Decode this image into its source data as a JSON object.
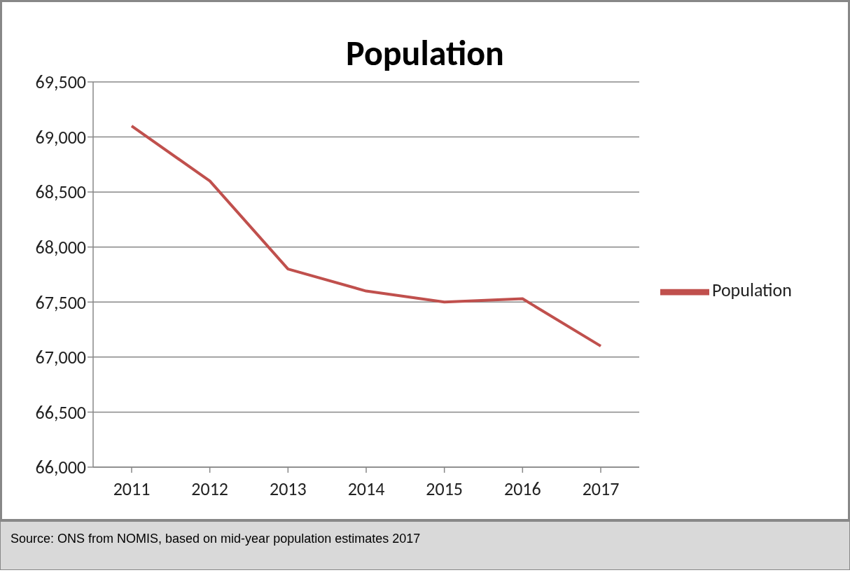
{
  "chart_data": {
    "type": "line",
    "title": "Population",
    "categories": [
      "2011",
      "2012",
      "2013",
      "2014",
      "2015",
      "2016",
      "2017"
    ],
    "series": [
      {
        "name": "Population",
        "color": "#c0504d",
        "values": [
          69100,
          68600,
          67800,
          67600,
          67500,
          67530,
          67100
        ]
      }
    ],
    "ylim": [
      66000,
      69500
    ],
    "yticks": [
      {
        "value": 66000,
        "label": "66,000"
      },
      {
        "value": 66500,
        "label": "66,500"
      },
      {
        "value": 67000,
        "label": "67,000"
      },
      {
        "value": 67500,
        "label": "67,500"
      },
      {
        "value": 68000,
        "label": "68,000"
      },
      {
        "value": 68500,
        "label": "68,500"
      },
      {
        "value": 69000,
        "label": "69,000"
      },
      {
        "value": 69500,
        "label": "69,500"
      }
    ],
    "grid": "y",
    "legend": "right",
    "marker": "none",
    "line_style": "solid",
    "annotations": [
      "Source: ONS from NOMIS, based on mid-year population estimates 2017"
    ]
  }
}
